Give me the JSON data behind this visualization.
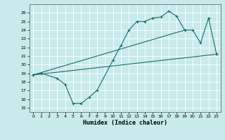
{
  "xlabel": "Humidex (Indice chaleur)",
  "bg_color": "#c8eaea",
  "grid_color": "#ffffff",
  "line_color": "#1a6b6b",
  "xlim": [
    -0.5,
    23.5
  ],
  "ylim": [
    14.5,
    27.0
  ],
  "xticks": [
    0,
    1,
    2,
    3,
    4,
    5,
    6,
    7,
    8,
    9,
    10,
    11,
    12,
    13,
    14,
    15,
    16,
    17,
    18,
    19,
    20,
    21,
    22,
    23
  ],
  "yticks": [
    15,
    16,
    17,
    18,
    19,
    20,
    21,
    22,
    23,
    24,
    25,
    26
  ],
  "line1_x": [
    0,
    1,
    3,
    4,
    5,
    6,
    7,
    8,
    10,
    11,
    12,
    13,
    14,
    15,
    16,
    17,
    18,
    19,
    20,
    21,
    22,
    23
  ],
  "line1_y": [
    18.8,
    19.0,
    18.4,
    17.7,
    15.5,
    15.5,
    16.2,
    17.0,
    20.5,
    22.2,
    24.0,
    25.0,
    25.0,
    25.4,
    25.5,
    26.2,
    25.6,
    24.0,
    24.0,
    22.5,
    25.4,
    21.2
  ],
  "line2_x": [
    0,
    19
  ],
  "line2_y": [
    18.8,
    24.0
  ],
  "line3_x": [
    0,
    23
  ],
  "line3_y": [
    18.8,
    21.2
  ]
}
